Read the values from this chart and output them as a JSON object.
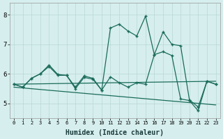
{
  "x": [
    0,
    1,
    2,
    3,
    4,
    5,
    6,
    7,
    8,
    9,
    10,
    11,
    12,
    13,
    14,
    15,
    16,
    17,
    18,
    19,
    20,
    21,
    22,
    23
  ],
  "line_zigzag": [
    5.65,
    5.55,
    5.85,
    6.0,
    6.3,
    5.98,
    5.95,
    5.55,
    5.93,
    5.85,
    5.45,
    5.9,
    5.7,
    5.55,
    5.7,
    5.65,
    6.65,
    6.75,
    6.62,
    5.15,
    5.1,
    4.75,
    5.75,
    5.65
  ],
  "line_spike": [
    5.65,
    5.55,
    5.85,
    6.0,
    6.25,
    5.95,
    5.95,
    5.5,
    5.88,
    5.82,
    5.45,
    7.55,
    7.68,
    7.45,
    7.28,
    7.95,
    6.65,
    7.42,
    7.0,
    6.95,
    5.12,
    4.88,
    5.75,
    5.65
  ],
  "trend1_x": [
    0,
    23
  ],
  "trend1_y": [
    5.65,
    5.75
  ],
  "trend2_x": [
    0,
    23
  ],
  "trend2_y": [
    5.55,
    4.95
  ],
  "bg_color": "#d6eeee",
  "line_color": "#1a6b5a",
  "grid_color": "#b8d8d4",
  "xlabel": "Humidex (Indice chaleur)",
  "xlabel_fontsize": 7,
  "ylim": [
    4.5,
    8.4
  ],
  "yticks": [
    5,
    6,
    7,
    8
  ],
  "xticks": [
    0,
    1,
    2,
    3,
    4,
    5,
    6,
    7,
    8,
    9,
    10,
    11,
    12,
    13,
    14,
    15,
    16,
    17,
    18,
    19,
    20,
    21,
    22,
    23
  ]
}
